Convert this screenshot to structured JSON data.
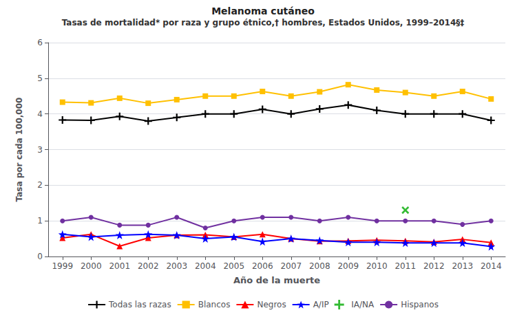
{
  "chart_data": {
    "type": "line",
    "title": "Melanoma cutáneo",
    "subtitle": "Tasas de mortalidad* por raza y grupo étnico,† hombres, Estados Unidos, 1999–2014§‡",
    "x_label": "Año de la muerte",
    "y_label": "Tasa por cada 100,000",
    "x": [
      1999,
      2000,
      2001,
      2002,
      2003,
      2004,
      2005,
      2006,
      2007,
      2008,
      2009,
      2010,
      2011,
      2012,
      2013,
      2014
    ],
    "xlim": [
      1998.5,
      2014.5
    ],
    "xticks": [
      1999,
      2000,
      2001,
      2002,
      2003,
      2004,
      2005,
      2006,
      2007,
      2008,
      2009,
      2010,
      2011,
      2012,
      2013,
      2014
    ],
    "ylim": [
      0,
      6
    ],
    "yticks": [
      0,
      1,
      2,
      3,
      4,
      5,
      6
    ],
    "grid": true,
    "legend": "bottom",
    "series": [
      {
        "name": "Todas las razas",
        "color": "#000000",
        "marker": "plus",
        "line_style": "solid",
        "values": [
          3.83,
          3.82,
          3.93,
          3.8,
          3.9,
          4.0,
          4.0,
          4.13,
          4.0,
          4.14,
          4.25,
          4.1,
          4.0,
          4.0,
          4.0,
          3.82
        ]
      },
      {
        "name": "Blancos",
        "color": "#FFC000",
        "marker": "square",
        "line_style": "solid",
        "values": [
          4.33,
          4.31,
          4.44,
          4.3,
          4.4,
          4.5,
          4.5,
          4.63,
          4.5,
          4.62,
          4.82,
          4.67,
          4.6,
          4.5,
          4.63,
          4.42
        ]
      },
      {
        "name": "Negros",
        "color": "#FF0000",
        "marker": "triangle",
        "line_style": "solid",
        "values": [
          0.52,
          0.62,
          0.29,
          0.52,
          0.6,
          0.61,
          0.55,
          0.62,
          0.5,
          0.43,
          0.44,
          0.46,
          0.44,
          0.41,
          0.48,
          0.39
        ]
      },
      {
        "name": "A/IP",
        "color": "#0000FF",
        "marker": "star",
        "line_style": "solid",
        "values": [
          0.62,
          0.55,
          0.6,
          0.62,
          0.6,
          0.5,
          0.55,
          0.42,
          0.5,
          0.45,
          0.4,
          0.4,
          0.38,
          0.38,
          0.38,
          0.28
        ]
      },
      {
        "name": "IA/NA",
        "color": "#00AA00",
        "marker": "x",
        "line_style": "none",
        "values": [
          null,
          null,
          null,
          null,
          null,
          null,
          null,
          null,
          null,
          null,
          null,
          null,
          1.3,
          null,
          null,
          null
        ]
      },
      {
        "name": "Hispanos",
        "color": "#7030A0",
        "marker": "circle",
        "line_style": "solid",
        "values": [
          1.0,
          1.1,
          0.88,
          0.88,
          1.1,
          0.8,
          1.0,
          1.1,
          1.1,
          1.0,
          1.1,
          1.0,
          1.0,
          1.0,
          0.9,
          1.0
        ]
      }
    ]
  }
}
